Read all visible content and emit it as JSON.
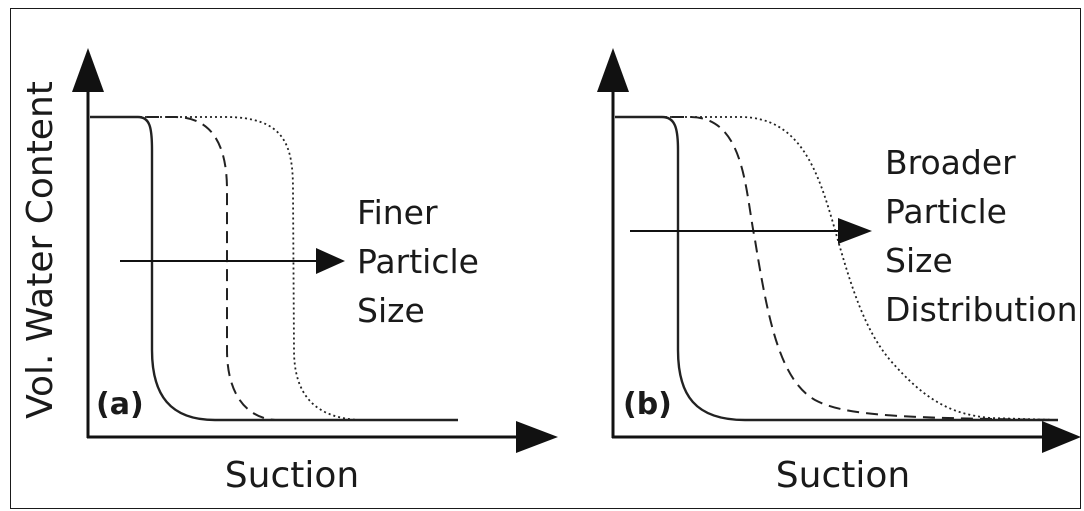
{
  "panels": [
    {
      "tag": "(a)",
      "xlabel": "Suction",
      "ylabel": "Vol. Water Content",
      "annotation": [
        "Finer",
        "Particle",
        "Size"
      ]
    },
    {
      "tag": "(b)",
      "xlabel": "Suction",
      "ylabel": "",
      "annotation": [
        "Broader",
        "Particle",
        "Size",
        "Distribution"
      ]
    }
  ],
  "line_styles": [
    "solid",
    "dashed",
    "dotted"
  ],
  "colors": {
    "ink": "#222222",
    "frame": "#1a1a1a",
    "background": "#ffffff"
  }
}
